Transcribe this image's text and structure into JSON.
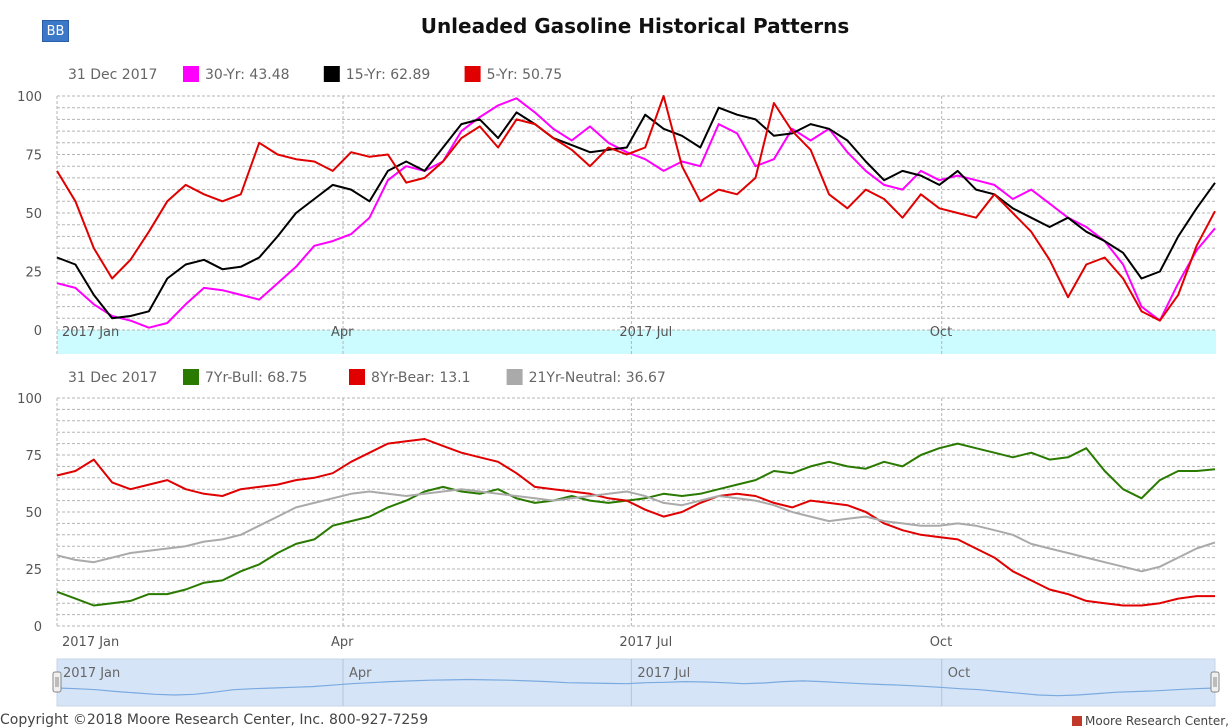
{
  "header": {
    "badge": "BB",
    "title": "Unleaded Gasoline Historical Patterns"
  },
  "footer": {
    "copyright": "Copyright ©2018 Moore Research Center, Inc. 800-927-7259",
    "brand": "Moore Research Center, Inc."
  },
  "colors": {
    "magenta": "#ff00ff",
    "black": "#000000",
    "red": "#e00000",
    "green": "#2a7a00",
    "gray": "#aaaaaa",
    "band": "#ccfcff",
    "navigator_fill": "#d6e4f7",
    "navigator_line": "#7aaae0"
  },
  "chart_data": [
    {
      "type": "line",
      "title": "Top panel",
      "date_label": "31 Dec 2017",
      "ylim": [
        0,
        100
      ],
      "yticks": [
        "0",
        "25",
        "50",
        "75",
        "100"
      ],
      "x_labels": [
        "2017 Jan",
        "Apr",
        "2017 Jul",
        "Oct"
      ],
      "x_label_positions": [
        0.0,
        0.247,
        0.496,
        0.764
      ],
      "series": [
        {
          "name": "30-Yr",
          "legend": "30-Yr: 43.48",
          "color": "#ff00ff",
          "values": [
            20,
            18,
            11,
            6,
            4,
            1,
            3,
            11,
            18,
            17,
            15,
            13,
            20,
            27,
            36,
            38,
            41,
            48,
            64,
            70,
            68,
            72,
            85,
            91,
            96,
            99,
            93,
            86,
            81,
            87,
            80,
            76,
            73,
            68,
            72,
            70,
            88,
            84,
            70,
            73,
            86,
            81,
            86,
            76,
            68,
            62,
            60,
            68,
            64,
            66,
            64,
            62,
            56,
            60,
            54,
            48,
            44,
            38,
            28,
            10,
            4,
            20,
            34,
            43.48
          ]
        },
        {
          "name": "15-Yr",
          "legend": "15-Yr: 62.89",
          "color": "#000000",
          "values": [
            31,
            28,
            15,
            5,
            6,
            8,
            22,
            28,
            30,
            26,
            27,
            31,
            40,
            50,
            56,
            62,
            60,
            55,
            68,
            72,
            68,
            78,
            88,
            90,
            82,
            93,
            88,
            82,
            79,
            76,
            77,
            78,
            92,
            86,
            83,
            78,
            95,
            92,
            90,
            83,
            84,
            88,
            86,
            81,
            72,
            64,
            68,
            66,
            62,
            68,
            60,
            58,
            52,
            48,
            44,
            48,
            42,
            38,
            33,
            22,
            25,
            40,
            52,
            62.89
          ]
        },
        {
          "name": "5-Yr",
          "legend": "5-Yr: 50.75",
          "color": "#e00000",
          "values": [
            68,
            55,
            35,
            22,
            30,
            42,
            55,
            62,
            58,
            55,
            58,
            80,
            75,
            73,
            72,
            68,
            76,
            74,
            75,
            63,
            65,
            72,
            82,
            87,
            78,
            90,
            88,
            82,
            77,
            70,
            78,
            75,
            78,
            100,
            70,
            55,
            60,
            58,
            65,
            97,
            85,
            77,
            58,
            52,
            60,
            56,
            48,
            58,
            52,
            50,
            48,
            58,
            50,
            42,
            30,
            14,
            28,
            31,
            22,
            8,
            4,
            15,
            36,
            50.75
          ]
        }
      ]
    },
    {
      "type": "line",
      "title": "Bottom panel",
      "date_label": "31 Dec 2017",
      "ylim": [
        0,
        100
      ],
      "yticks": [
        "0",
        "25",
        "50",
        "75",
        "100"
      ],
      "x_labels": [
        "2017 Jan",
        "Apr",
        "2017 Jul",
        "Oct"
      ],
      "x_label_positions": [
        0.0,
        0.247,
        0.496,
        0.764
      ],
      "series": [
        {
          "name": "7Yr-Bull",
          "legend": "7Yr-Bull: 68.75",
          "color": "#2a7a00",
          "values": [
            15,
            12,
            9,
            10,
            11,
            14,
            14,
            16,
            19,
            20,
            24,
            27,
            32,
            36,
            38,
            44,
            46,
            48,
            52,
            55,
            59,
            61,
            59,
            58,
            60,
            56,
            54,
            55,
            57,
            55,
            54,
            55,
            56,
            58,
            57,
            58,
            60,
            62,
            64,
            68,
            67,
            70,
            72,
            70,
            69,
            72,
            70,
            75,
            78,
            80,
            78,
            76,
            74,
            76,
            73,
            74,
            78,
            68,
            60,
            56,
            64,
            68,
            68,
            68.75
          ]
        },
        {
          "name": "8Yr-Bear",
          "legend": "8Yr-Bear: 13.1",
          "color": "#e00000",
          "values": [
            66,
            68,
            73,
            63,
            60,
            62,
            64,
            60,
            58,
            57,
            60,
            61,
            62,
            64,
            65,
            67,
            72,
            76,
            80,
            81,
            82,
            79,
            76,
            74,
            72,
            67,
            61,
            60,
            59,
            58,
            56,
            55,
            51,
            48,
            50,
            54,
            57,
            58,
            57,
            54,
            52,
            55,
            54,
            53,
            50,
            45,
            42,
            40,
            39,
            38,
            34,
            30,
            24,
            20,
            16,
            14,
            11,
            10,
            9,
            9,
            10,
            12,
            13.1,
            13.1
          ]
        },
        {
          "name": "21Yr-Neutral",
          "legend": "21Yr-Neutral: 36.67",
          "color": "#aaaaaa",
          "values": [
            31,
            29,
            28,
            30,
            32,
            33,
            34,
            35,
            37,
            38,
            40,
            44,
            48,
            52,
            54,
            56,
            58,
            59,
            58,
            57,
            58,
            59,
            60,
            59,
            58,
            57,
            56,
            55,
            56,
            57,
            58,
            59,
            57,
            54,
            53,
            55,
            57,
            56,
            55,
            53,
            50,
            48,
            46,
            47,
            48,
            46,
            45,
            44,
            44,
            45,
            44,
            42,
            40,
            36,
            34,
            32,
            30,
            28,
            26,
            24,
            26,
            30,
            34,
            36.67
          ]
        }
      ]
    },
    {
      "type": "area",
      "title": "Navigator",
      "x_labels": [
        "2017 Jan",
        "Apr",
        "2017 Jul",
        "Oct"
      ],
      "values": [
        40,
        38,
        35,
        30,
        26,
        22,
        20,
        22,
        28,
        35,
        38,
        40,
        42,
        44,
        48,
        52,
        55,
        58,
        60,
        62,
        63,
        64,
        63,
        62,
        60,
        58,
        55,
        54,
        53,
        52,
        55,
        56,
        58,
        57,
        55,
        52,
        54,
        58,
        60,
        58,
        55,
        52,
        50,
        48,
        45,
        42,
        38,
        35,
        30,
        25,
        20,
        18,
        20,
        24,
        28,
        30,
        32,
        35,
        38,
        40
      ]
    }
  ]
}
